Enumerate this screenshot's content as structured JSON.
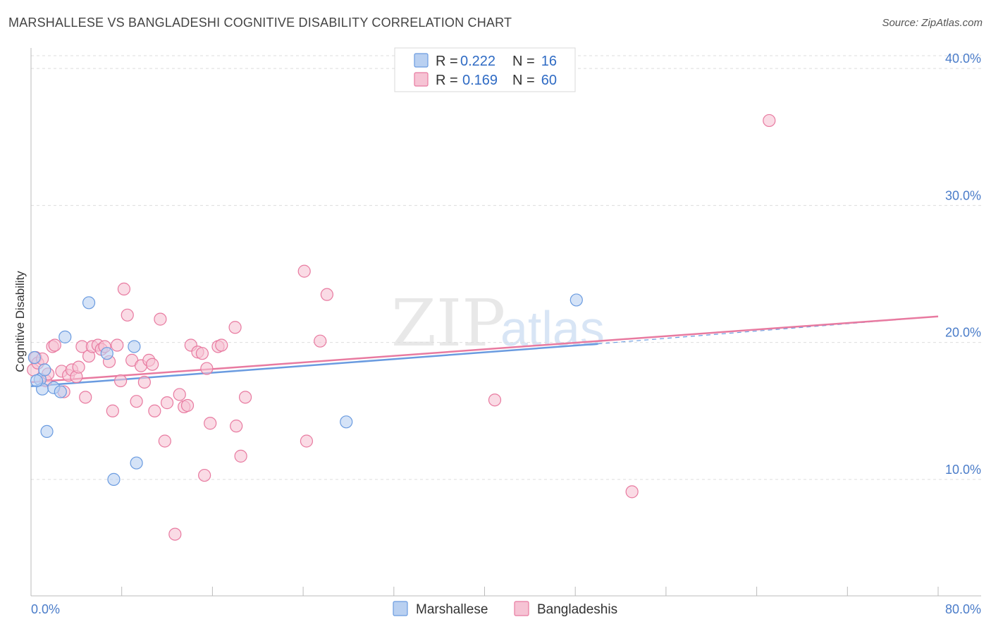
{
  "chart_data": {
    "type": "scatter",
    "title": "MARSHALLESE VS BANGLADESHI COGNITIVE DISABILITY CORRELATION CHART",
    "source": "Source: ZipAtlas.com",
    "xlabel": "",
    "ylabel": "Cognitive Disability",
    "xlim": [
      0,
      80
    ],
    "ylim": [
      1.5,
      41.5
    ],
    "x_tick_labels": {
      "min": "0.0%",
      "max": "80.0%"
    },
    "x_minor_ticks": [
      8,
      16,
      24,
      32,
      40,
      48,
      56,
      64,
      72,
      80
    ],
    "y_ticks": [
      {
        "value": 10,
        "label": "10.0%"
      },
      {
        "value": 20,
        "label": "20.0%"
      },
      {
        "value": 30,
        "label": "30.0%"
      },
      {
        "value": 40,
        "label": "40.0%"
      }
    ],
    "grid": true,
    "watermark": {
      "part1": "ZIP",
      "part2": "atlas"
    },
    "legend": {
      "position": "top-center",
      "rows": [
        {
          "r_label": "R =",
          "r_value": "0.222",
          "n_label": "N =",
          "n_value": "16"
        },
        {
          "r_label": "R =",
          "r_value": "0.169",
          "n_label": "N =",
          "n_value": "60"
        }
      ]
    },
    "series": [
      {
        "name": "Marshallese",
        "color": "#6a9be0",
        "fill": "#b9d0f1",
        "trend": {
          "x0": 0,
          "y0": 16.8,
          "x1": 50,
          "y1": 19.9,
          "dashed_to_x": 80,
          "dashed_to_y": 21.9
        },
        "points": [
          [
            0.3,
            18.9
          ],
          [
            0.8,
            17.3
          ],
          [
            1.0,
            16.6
          ],
          [
            1.2,
            18.0
          ],
          [
            1.4,
            13.5
          ],
          [
            2.0,
            16.7
          ],
          [
            2.6,
            16.4
          ],
          [
            3.0,
            20.4
          ],
          [
            5.1,
            22.9
          ],
          [
            6.7,
            19.2
          ],
          [
            7.3,
            10.0
          ],
          [
            9.1,
            19.7
          ],
          [
            9.3,
            11.2
          ],
          [
            27.8,
            14.2
          ],
          [
            48.1,
            23.1
          ],
          [
            0.5,
            17.2
          ]
        ]
      },
      {
        "name": "Bangladeshis",
        "color": "#e87aa0",
        "fill": "#f6c3d4",
        "trend": {
          "x0": 0,
          "y0": 17.1,
          "x1": 80,
          "y1": 21.9
        },
        "points": [
          [
            0.2,
            18.0
          ],
          [
            0.4,
            18.9
          ],
          [
            0.6,
            18.5
          ],
          [
            1.0,
            18.8
          ],
          [
            1.3,
            17.2
          ],
          [
            1.5,
            17.7
          ],
          [
            1.9,
            19.7
          ],
          [
            2.1,
            19.8
          ],
          [
            2.7,
            17.9
          ],
          [
            2.9,
            16.4
          ],
          [
            3.3,
            17.6
          ],
          [
            3.6,
            18.0
          ],
          [
            4.0,
            17.5
          ],
          [
            4.2,
            18.2
          ],
          [
            4.5,
            19.7
          ],
          [
            4.8,
            16.0
          ],
          [
            5.1,
            19.0
          ],
          [
            5.4,
            19.7
          ],
          [
            5.9,
            19.8
          ],
          [
            6.2,
            19.5
          ],
          [
            6.5,
            19.7
          ],
          [
            6.9,
            18.6
          ],
          [
            7.2,
            15.0
          ],
          [
            7.6,
            19.8
          ],
          [
            7.9,
            17.2
          ],
          [
            8.2,
            23.9
          ],
          [
            8.5,
            22.0
          ],
          [
            8.9,
            18.7
          ],
          [
            9.3,
            15.7
          ],
          [
            9.7,
            18.3
          ],
          [
            10.0,
            17.1
          ],
          [
            10.4,
            18.7
          ],
          [
            10.7,
            18.4
          ],
          [
            10.9,
            15.0
          ],
          [
            11.4,
            21.7
          ],
          [
            11.8,
            12.8
          ],
          [
            12.0,
            15.6
          ],
          [
            12.7,
            6.0
          ],
          [
            13.1,
            16.2
          ],
          [
            13.5,
            15.3
          ],
          [
            13.8,
            15.4
          ],
          [
            14.1,
            19.8
          ],
          [
            14.7,
            19.3
          ],
          [
            15.1,
            19.2
          ],
          [
            15.3,
            10.3
          ],
          [
            15.5,
            18.1
          ],
          [
            15.8,
            14.1
          ],
          [
            16.5,
            19.7
          ],
          [
            16.8,
            19.8
          ],
          [
            18.1,
            13.9
          ],
          [
            18.5,
            11.7
          ],
          [
            18.9,
            16.0
          ],
          [
            18.0,
            21.1
          ],
          [
            24.1,
            25.2
          ],
          [
            24.3,
            12.8
          ],
          [
            25.5,
            20.1
          ],
          [
            26.1,
            23.5
          ],
          [
            40.9,
            15.8
          ],
          [
            53.0,
            9.1
          ],
          [
            65.1,
            36.2
          ]
        ]
      }
    ]
  }
}
